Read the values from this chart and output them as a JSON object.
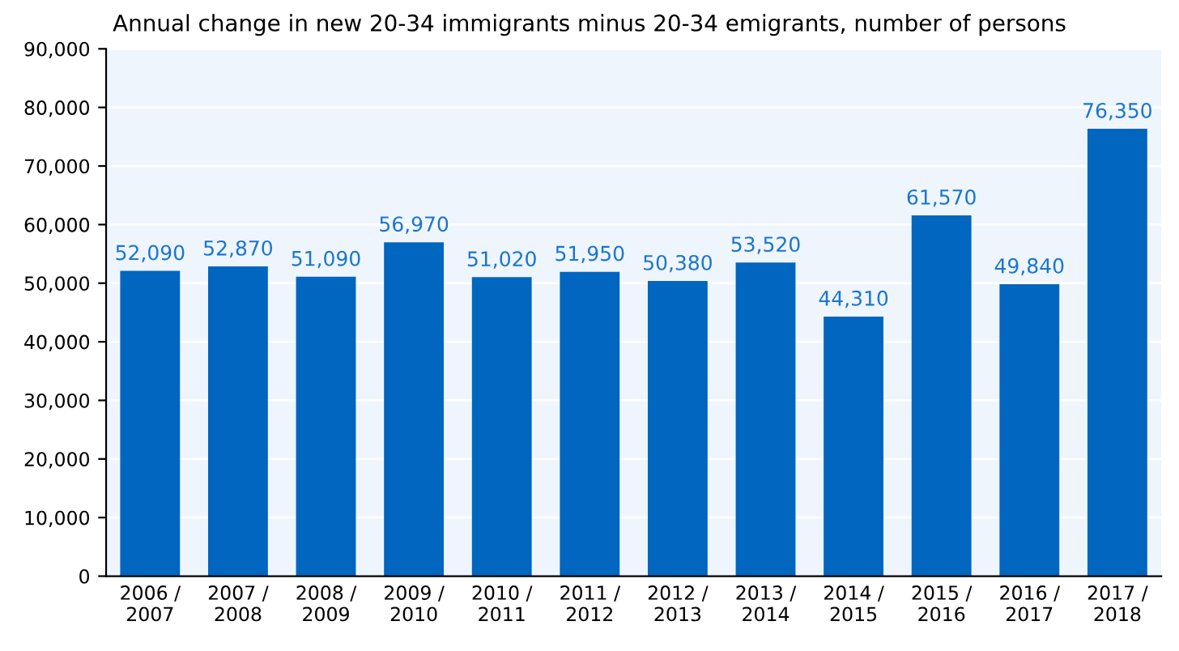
{
  "chart_data": {
    "type": "bar",
    "subtitle": "Annual change in new 20-34 immigrants minus 20-34 emigrants, number of persons",
    "categories": [
      "2006 /\n2007",
      "2007 /\n2008",
      "2008 /\n2009",
      "2009 /\n2010",
      "2010 /\n2011",
      "2011 /\n2012",
      "2012 /\n2013",
      "2013 /\n2014",
      "2014 /\n2015",
      "2015 /\n2016",
      "2016 /\n2017",
      "2017 /\n2018"
    ],
    "values": [
      52090,
      52870,
      51090,
      56970,
      51020,
      51950,
      50380,
      53520,
      44310,
      61570,
      49840,
      76350
    ],
    "color": "#0066c0",
    "value_labels": [
      "52,090",
      "52,870",
      "51,090",
      "56,970",
      "51,020",
      "51,950",
      "50,380",
      "53,520",
      "44,310",
      "61,570",
      "49,840",
      "76,350"
    ],
    "ylim": [
      0,
      90000
    ],
    "yticks": [
      {
        "value": 0,
        "label": "0"
      },
      {
        "value": 10000,
        "label": "10,000"
      },
      {
        "value": 20000,
        "label": "20,000"
      },
      {
        "value": 30000,
        "label": "30,000"
      },
      {
        "value": 40000,
        "label": "40,000"
      },
      {
        "value": 50000,
        "label": "50,000"
      },
      {
        "value": 60000,
        "label": "60,000"
      },
      {
        "value": 70000,
        "label": "70,000"
      },
      {
        "value": 80000,
        "label": "80,000"
      },
      {
        "value": 90000,
        "label": "90,000"
      }
    ],
    "grid": "y"
  }
}
